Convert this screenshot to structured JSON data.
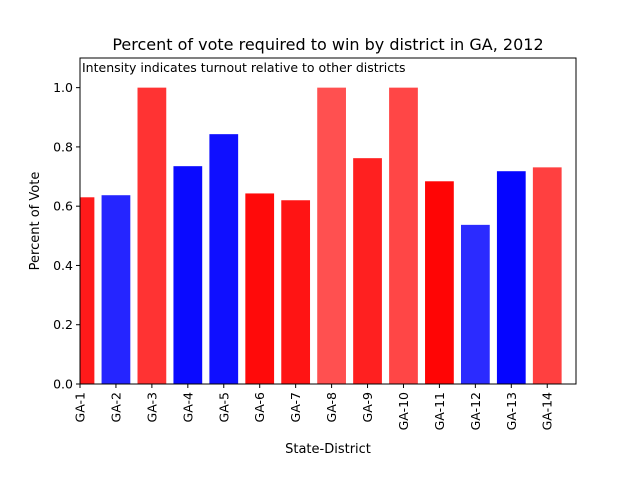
{
  "chart_data": {
    "type": "bar",
    "title": "Percent of vote required to win by district in GA, 2012",
    "annotation": "Intensity indicates turnout relative to other districts",
    "xlabel": "State-District",
    "ylabel": "Percent of Vote",
    "ylim": [
      0,
      1.1
    ],
    "yticks": [
      0.0,
      0.2,
      0.4,
      0.6,
      0.8,
      1.0
    ],
    "ytick_labels": [
      "0.0",
      "0.2",
      "0.4",
      "0.6",
      "0.8",
      "1.0"
    ],
    "grid": false,
    "categories": [
      "GA-1",
      "GA-2",
      "GA-3",
      "GA-4",
      "GA-5",
      "GA-6",
      "GA-7",
      "GA-8",
      "GA-9",
      "GA-10",
      "GA-11",
      "GA-12",
      "GA-13",
      "GA-14"
    ],
    "values": [
      0.63,
      0.637,
      1.0,
      0.735,
      0.843,
      0.643,
      0.62,
      1.0,
      0.762,
      1.0,
      0.684,
      0.537,
      0.718,
      0.731
    ],
    "colors": [
      "#ff1a1a",
      "#2525ff",
      "#ff3333",
      "#0a0aff",
      "#0f0fff",
      "#ff0a0a",
      "#ff1414",
      "#ff5050",
      "#ff2020",
      "#ff4646",
      "#ff0505",
      "#2b2bff",
      "#0505ff",
      "#ff4040"
    ]
  }
}
